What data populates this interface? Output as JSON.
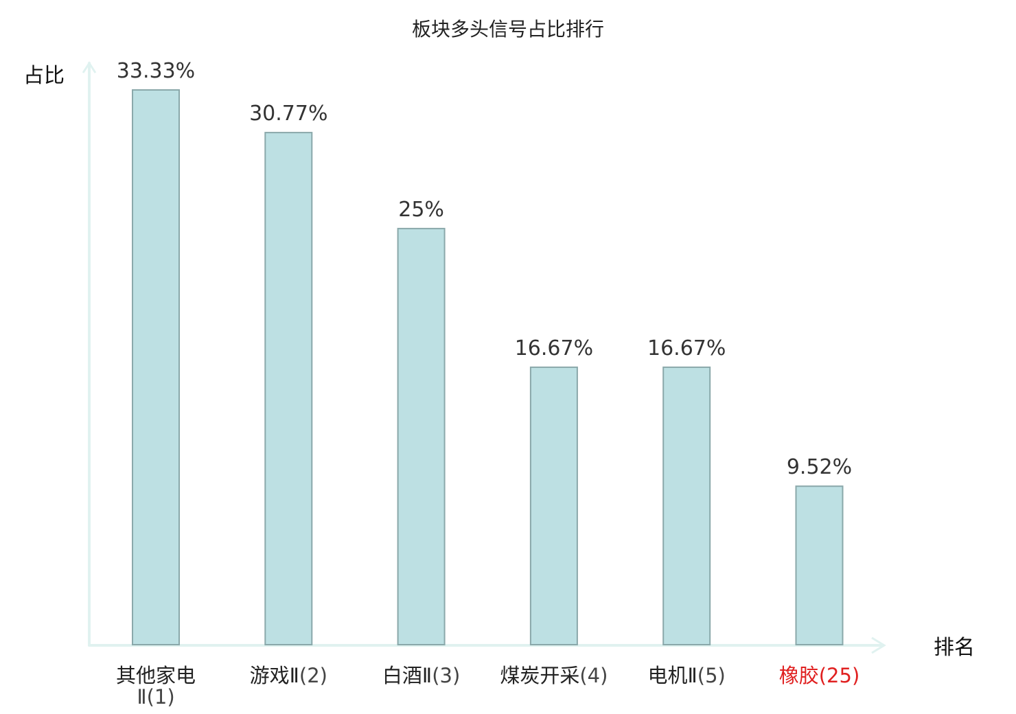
{
  "chart_data": {
    "type": "bar",
    "title": "板块多头信号占比排行",
    "ylabel": "占比",
    "xlabel": "排名",
    "categories": [
      {
        "name": "其他家电Ⅱ",
        "rank": "(1)",
        "highlight": false
      },
      {
        "name": "游戏Ⅱ",
        "rank": "(2)",
        "highlight": false
      },
      {
        "name": "白酒Ⅱ",
        "rank": "(3)",
        "highlight": false
      },
      {
        "name": "煤炭开采",
        "rank": "(4)",
        "highlight": false
      },
      {
        "name": "电机Ⅱ",
        "rank": "(5)",
        "highlight": false
      },
      {
        "name": "橡胶",
        "rank": "(25)",
        "highlight": true
      }
    ],
    "values": [
      33.33,
      30.77,
      25,
      16.67,
      16.67,
      9.52
    ],
    "value_labels": [
      "33.33%",
      "30.77%",
      "25%",
      "16.67%",
      "16.67%",
      "9.52%"
    ],
    "ylim": [
      0,
      33.33
    ],
    "grid": false,
    "colors": {
      "bar_fill": "#bde0e3",
      "bar_stroke": "#8aa8aa",
      "axis": "#e0f2f0",
      "highlight_label": "#e02020",
      "label": "#222222",
      "rank": "#444444"
    }
  }
}
